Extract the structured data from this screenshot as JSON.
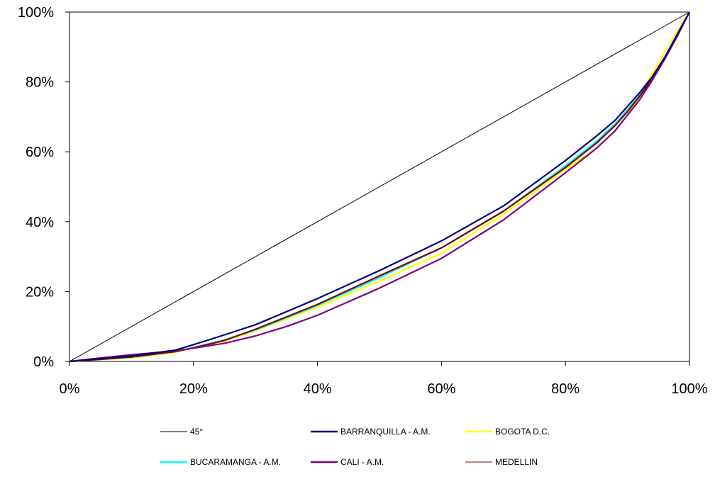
{
  "chart_data": {
    "type": "line",
    "title": "",
    "xlabel": "",
    "ylabel": "",
    "xlim": [
      0,
      100
    ],
    "ylim": [
      0,
      100
    ],
    "x_ticks": [
      "0%",
      "20%",
      "40%",
      "60%",
      "80%",
      "100%"
    ],
    "y_ticks": [
      "0%",
      "20%",
      "40%",
      "60%",
      "80%",
      "100%"
    ],
    "grid": false,
    "legend_position": "bottom",
    "series": [
      {
        "name": "45°",
        "color": "#000000",
        "x": [
          0,
          100
        ],
        "y": [
          0,
          100
        ]
      },
      {
        "name": "BARRANQUILLA - A.M.",
        "color": "#000080",
        "x": [
          0,
          5,
          10,
          17,
          20,
          25,
          30,
          40,
          50,
          60,
          70,
          80,
          85,
          88,
          90,
          92,
          94,
          96,
          98,
          100
        ],
        "y": [
          0,
          0.8,
          1.6,
          3.2,
          4.8,
          7.6,
          10.5,
          18.0,
          26.0,
          34.5,
          44.5,
          57.5,
          64.5,
          69.0,
          73.0,
          77.0,
          81.5,
          87.0,
          93.5,
          100
        ]
      },
      {
        "name": "BOGOTA D.C.",
        "color": "#FFFF00",
        "x": [
          0,
          5,
          10,
          17,
          20,
          25,
          30,
          40,
          50,
          60,
          70,
          80,
          85,
          88,
          90,
          92,
          94,
          96,
          98,
          100
        ],
        "y": [
          0,
          0.5,
          1.0,
          2.6,
          3.8,
          5.8,
          8.8,
          15.5,
          23.0,
          31.0,
          42.0,
          55.0,
          61.0,
          66.0,
          70.5,
          76.0,
          82.5,
          88.5,
          94.5,
          100
        ]
      },
      {
        "name": "BUCARAMANGA - A.M.",
        "color": "#00FFFF",
        "x": [
          0,
          5,
          10,
          17,
          20,
          25,
          30,
          40,
          50,
          60,
          70,
          80,
          85,
          88,
          90,
          92,
          94,
          96,
          98,
          100
        ],
        "y": [
          0,
          0.6,
          1.2,
          2.8,
          4.0,
          6.2,
          9.0,
          16.0,
          24.0,
          32.5,
          43.0,
          56.0,
          63.0,
          68.0,
          72.0,
          76.5,
          81.5,
          87.0,
          93.5,
          100
        ]
      },
      {
        "name": "CALI - A.M.",
        "color": "#800080",
        "x": [
          0,
          5,
          10,
          17,
          20,
          25,
          30,
          35,
          40,
          50,
          60,
          70,
          80,
          85,
          88,
          90,
          92,
          94,
          96,
          98,
          100
        ],
        "y": [
          0,
          1.0,
          1.9,
          3.0,
          3.8,
          5.2,
          7.3,
          10.0,
          13.2,
          21.0,
          29.5,
          40.5,
          54.0,
          61.0,
          66.0,
          70.5,
          75.0,
          80.5,
          86.5,
          93.0,
          100
        ]
      },
      {
        "name": "MEDELLIN",
        "color": "#800000",
        "x": [
          0,
          5,
          10,
          17,
          20,
          25,
          30,
          40,
          50,
          60,
          70,
          80,
          85,
          88,
          90,
          92,
          94,
          96,
          98,
          100
        ],
        "y": [
          0,
          0.6,
          1.3,
          2.8,
          3.9,
          6.0,
          9.2,
          16.3,
          24.5,
          32.5,
          43.0,
          55.5,
          62.5,
          67.5,
          71.5,
          76.0,
          81.0,
          86.5,
          93.0,
          100
        ]
      }
    ]
  }
}
